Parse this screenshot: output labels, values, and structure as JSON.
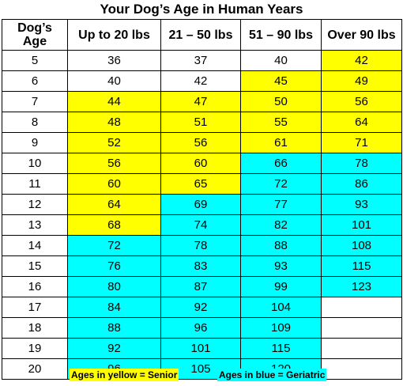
{
  "title": "Your Dog’s Age in Human Years",
  "columns": [
    "Dog’s\nAge",
    "Up to 20 lbs",
    "21 – 50 lbs",
    "51 – 90 lbs",
    "Over 90 lbs"
  ],
  "colors": {
    "senior": "#ffff00",
    "geriatric": "#00ffff",
    "normal": "#ffffff"
  },
  "rows": [
    {
      "age": "5",
      "cells": [
        {
          "v": "36",
          "s": "normal"
        },
        {
          "v": "37",
          "s": "normal"
        },
        {
          "v": "40",
          "s": "normal"
        },
        {
          "v": "42",
          "s": "senior"
        }
      ]
    },
    {
      "age": "6",
      "cells": [
        {
          "v": "40",
          "s": "normal"
        },
        {
          "v": "42",
          "s": "normal"
        },
        {
          "v": "45",
          "s": "senior"
        },
        {
          "v": "49",
          "s": "senior"
        }
      ]
    },
    {
      "age": "7",
      "cells": [
        {
          "v": "44",
          "s": "senior"
        },
        {
          "v": "47",
          "s": "senior"
        },
        {
          "v": "50",
          "s": "senior"
        },
        {
          "v": "56",
          "s": "senior"
        }
      ]
    },
    {
      "age": "8",
      "cells": [
        {
          "v": "48",
          "s": "senior"
        },
        {
          "v": "51",
          "s": "senior"
        },
        {
          "v": "55",
          "s": "senior"
        },
        {
          "v": "64",
          "s": "senior"
        }
      ]
    },
    {
      "age": "9",
      "cells": [
        {
          "v": "52",
          "s": "senior"
        },
        {
          "v": "56",
          "s": "senior"
        },
        {
          "v": "61",
          "s": "senior"
        },
        {
          "v": "71",
          "s": "senior"
        }
      ]
    },
    {
      "age": "10",
      "cells": [
        {
          "v": "56",
          "s": "senior"
        },
        {
          "v": "60",
          "s": "senior"
        },
        {
          "v": "66",
          "s": "geriatric"
        },
        {
          "v": "78",
          "s": "geriatric"
        }
      ]
    },
    {
      "age": "11",
      "cells": [
        {
          "v": "60",
          "s": "senior"
        },
        {
          "v": "65",
          "s": "senior"
        },
        {
          "v": "72",
          "s": "geriatric"
        },
        {
          "v": "86",
          "s": "geriatric"
        }
      ]
    },
    {
      "age": "12",
      "cells": [
        {
          "v": "64",
          "s": "senior"
        },
        {
          "v": "69",
          "s": "geriatric"
        },
        {
          "v": "77",
          "s": "geriatric"
        },
        {
          "v": "93",
          "s": "geriatric"
        }
      ]
    },
    {
      "age": "13",
      "cells": [
        {
          "v": "68",
          "s": "senior"
        },
        {
          "v": "74",
          "s": "geriatric"
        },
        {
          "v": "82",
          "s": "geriatric"
        },
        {
          "v": "101",
          "s": "geriatric"
        }
      ]
    },
    {
      "age": "14",
      "cells": [
        {
          "v": "72",
          "s": "geriatric"
        },
        {
          "v": "78",
          "s": "geriatric"
        },
        {
          "v": "88",
          "s": "geriatric"
        },
        {
          "v": "108",
          "s": "geriatric"
        }
      ]
    },
    {
      "age": "15",
      "cells": [
        {
          "v": "76",
          "s": "geriatric"
        },
        {
          "v": "83",
          "s": "geriatric"
        },
        {
          "v": "93",
          "s": "geriatric"
        },
        {
          "v": "115",
          "s": "geriatric"
        }
      ]
    },
    {
      "age": "16",
      "cells": [
        {
          "v": "80",
          "s": "geriatric"
        },
        {
          "v": "87",
          "s": "geriatric"
        },
        {
          "v": "99",
          "s": "geriatric"
        },
        {
          "v": "123",
          "s": "geriatric"
        }
      ]
    },
    {
      "age": "17",
      "cells": [
        {
          "v": "84",
          "s": "geriatric"
        },
        {
          "v": "92",
          "s": "geriatric"
        },
        {
          "v": "104",
          "s": "geriatric"
        },
        {
          "v": "",
          "s": "normal"
        }
      ]
    },
    {
      "age": "18",
      "cells": [
        {
          "v": "88",
          "s": "geriatric"
        },
        {
          "v": "96",
          "s": "geriatric"
        },
        {
          "v": "109",
          "s": "geriatric"
        },
        {
          "v": "",
          "s": "normal"
        }
      ]
    },
    {
      "age": "19",
      "cells": [
        {
          "v": "92",
          "s": "geriatric"
        },
        {
          "v": "101",
          "s": "geriatric"
        },
        {
          "v": "115",
          "s": "geriatric"
        },
        {
          "v": "",
          "s": "normal"
        }
      ]
    },
    {
      "age": "20",
      "cells": [
        {
          "v": "96",
          "s": "geriatric"
        },
        {
          "v": "105",
          "s": "geriatric"
        },
        {
          "v": "120",
          "s": "geriatric"
        },
        {
          "v": "",
          "s": "normal"
        }
      ]
    }
  ],
  "legend": {
    "senior": "Ages in yellow = Senior",
    "geriatric": "Ages in blue = Geriatric"
  }
}
